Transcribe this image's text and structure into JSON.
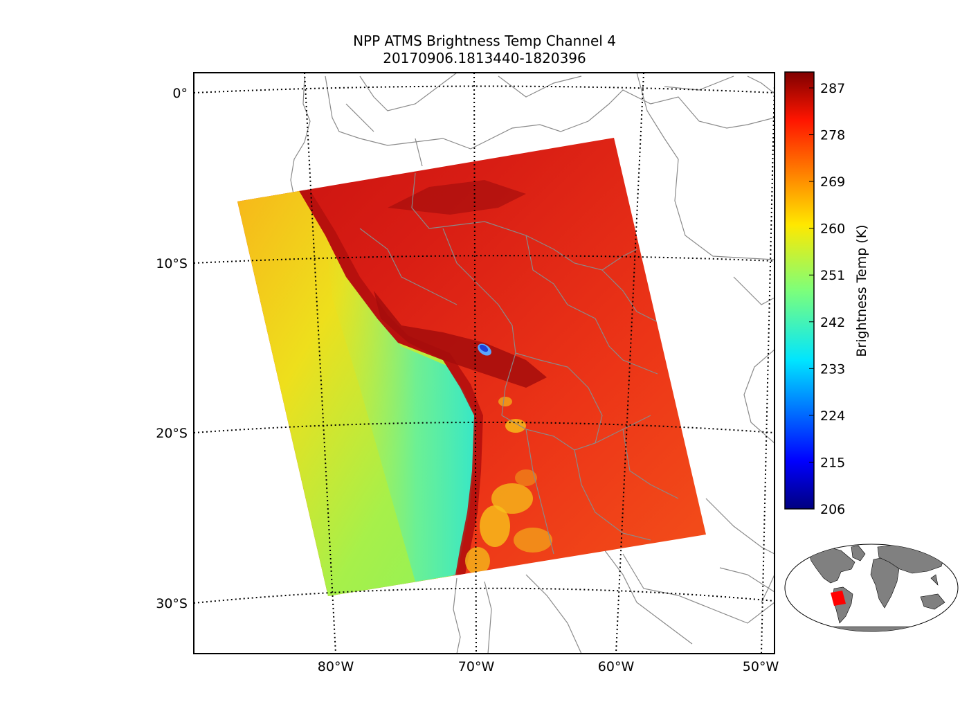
{
  "title": {
    "line1": "NPP ATMS Brightness Temp Channel 4",
    "line2": "20170906.1813440-1820396"
  },
  "map": {
    "lat_labels": [
      "0°",
      "10°S",
      "20°S",
      "30°S"
    ],
    "lon_labels": [
      "80°W",
      "70°W",
      "60°W",
      "50°W"
    ]
  },
  "colorbar": {
    "label": "Brightness Temp (K)",
    "ticks": [
      "287",
      "278",
      "269",
      "260",
      "251",
      "242",
      "233",
      "224",
      "215",
      "206"
    ],
    "colormap": "jet",
    "range": [
      206,
      291
    ]
  },
  "colors": {
    "ocean_warm": "#f7b51a",
    "ocean_cool": "#36e7c8",
    "land_hot": "#e3261a",
    "land_peak": "#a40d0c",
    "cold_spot": "#1f3fd8",
    "coastline": "#8a8a8a",
    "inset_land": "#808080",
    "swath_marker": "#ff0000"
  },
  "inset": {
    "type": "world-overview",
    "marker": "swath-footprint"
  }
}
